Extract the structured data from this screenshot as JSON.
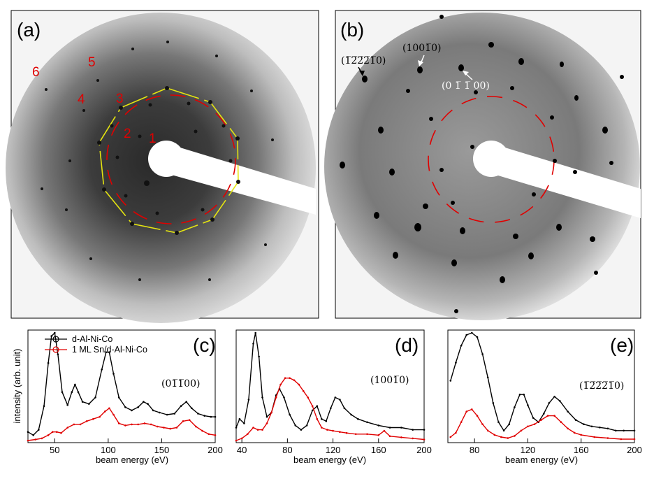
{
  "panels": {
    "a": {
      "label": "(a)",
      "spot_numbers": [
        "1",
        "2",
        "3",
        "4",
        "5",
        "6"
      ]
    },
    "b": {
      "label": "(b)",
      "annotations": {
        "spot1": "(0 1̅ 1̅ 00)",
        "spot2": "(1001̅0)",
        "spot3": "(1̅2̅2̅2̅1̅0)"
      }
    }
  },
  "chart_data": [
    {
      "type": "line",
      "panel_label": "(c)",
      "annotation": "(01̅1̅00)",
      "xlabel": "beam energy (eV)",
      "ylabel": "intensity (arb. unit)",
      "xlim": [
        25,
        200
      ],
      "xticks": [
        50,
        100,
        150,
        200
      ],
      "legend": [
        "d-Al-Ni-Co",
        "1 ML Sn/d-Al-Ni-Co"
      ],
      "series": [
        {
          "name": "d-Al-Ni-Co",
          "color": "#000000",
          "x": [
            25,
            30,
            35,
            40,
            44,
            47,
            50,
            53,
            57,
            62,
            66,
            69,
            72,
            76,
            82,
            88,
            94,
            98,
            101,
            105,
            110,
            116,
            122,
            128,
            133,
            137,
            142,
            148,
            155,
            162,
            168,
            173,
            178,
            184,
            190,
            196,
            200
          ],
          "y": [
            0.08,
            0.05,
            0.1,
            0.32,
            0.72,
            0.97,
            1.0,
            0.8,
            0.45,
            0.33,
            0.45,
            0.52,
            0.45,
            0.36,
            0.34,
            0.4,
            0.66,
            0.82,
            0.82,
            0.62,
            0.4,
            0.31,
            0.28,
            0.31,
            0.36,
            0.34,
            0.28,
            0.26,
            0.24,
            0.25,
            0.32,
            0.36,
            0.3,
            0.25,
            0.23,
            0.22,
            0.22
          ]
        },
        {
          "name": "1 ML Sn/d-Al-Ni-Co",
          "color": "#e00000",
          "x": [
            25,
            32,
            38,
            44,
            48,
            52,
            56,
            62,
            68,
            74,
            80,
            86,
            92,
            97,
            101,
            105,
            110,
            116,
            122,
            128,
            134,
            140,
            146,
            152,
            158,
            164,
            170,
            176,
            182,
            188,
            194,
            200
          ],
          "y": [
            0.0,
            0.01,
            0.02,
            0.05,
            0.08,
            0.08,
            0.07,
            0.12,
            0.15,
            0.15,
            0.18,
            0.2,
            0.22,
            0.27,
            0.3,
            0.24,
            0.16,
            0.14,
            0.15,
            0.15,
            0.16,
            0.15,
            0.13,
            0.12,
            0.11,
            0.12,
            0.18,
            0.19,
            0.13,
            0.09,
            0.06,
            0.05
          ]
        }
      ]
    },
    {
      "type": "line",
      "panel_label": "(d)",
      "annotation": "(1001̅0)",
      "xlabel": "beam energy (eV)",
      "xlim": [
        35,
        200
      ],
      "xticks": [
        40,
        80,
        120,
        160,
        200
      ],
      "series": [
        {
          "name": "d-Al-Ni-Co",
          "color": "#000000",
          "x": [
            35,
            38,
            42,
            46,
            50,
            52,
            55,
            58,
            62,
            66,
            70,
            73,
            77,
            82,
            87,
            92,
            97,
            102,
            106,
            110,
            114,
            118,
            122,
            126,
            130,
            136,
            142,
            150,
            160,
            170,
            180,
            190,
            200
          ],
          "y": [
            0.12,
            0.2,
            0.16,
            0.38,
            0.9,
            1.0,
            0.78,
            0.4,
            0.22,
            0.26,
            0.42,
            0.48,
            0.4,
            0.24,
            0.14,
            0.1,
            0.14,
            0.28,
            0.32,
            0.2,
            0.18,
            0.3,
            0.4,
            0.38,
            0.3,
            0.24,
            0.2,
            0.17,
            0.14,
            0.12,
            0.12,
            0.1,
            0.1
          ]
        },
        {
          "name": "1 ML Sn/d-Al-Ni-Co",
          "color": "#e00000",
          "x": [
            35,
            40,
            45,
            50,
            54,
            58,
            62,
            66,
            70,
            74,
            78,
            82,
            86,
            90,
            94,
            98,
            102,
            106,
            110,
            115,
            120,
            126,
            132,
            140,
            150,
            160,
            165,
            170,
            180,
            190,
            200
          ],
          "y": [
            0.0,
            0.02,
            0.06,
            0.12,
            0.1,
            0.1,
            0.16,
            0.26,
            0.4,
            0.52,
            0.58,
            0.58,
            0.56,
            0.52,
            0.46,
            0.4,
            0.32,
            0.2,
            0.12,
            0.1,
            0.09,
            0.08,
            0.07,
            0.06,
            0.06,
            0.05,
            0.09,
            0.04,
            0.03,
            0.02,
            0.01
          ]
        }
      ]
    },
    {
      "type": "line",
      "panel_label": "(e)",
      "annotation": "(1̅2̅2̅2̅1̅0)",
      "xlabel": "beam energy (eV)",
      "xlim": [
        60,
        200
      ],
      "xticks": [
        80,
        120,
        160,
        200
      ],
      "series": [
        {
          "name": "d-Al-Ni-Co",
          "color": "#000000",
          "x": [
            62,
            66,
            70,
            74,
            78,
            82,
            86,
            90,
            94,
            98,
            102,
            106,
            110,
            114,
            117,
            120,
            124,
            128,
            132,
            136,
            140,
            144,
            150,
            156,
            162,
            168,
            174,
            180,
            186,
            192,
            200
          ],
          "y": [
            0.55,
            0.72,
            0.88,
            0.98,
            1.0,
            0.96,
            0.8,
            0.58,
            0.34,
            0.16,
            0.08,
            0.14,
            0.3,
            0.42,
            0.42,
            0.32,
            0.2,
            0.16,
            0.24,
            0.34,
            0.4,
            0.36,
            0.26,
            0.18,
            0.14,
            0.12,
            0.11,
            0.1,
            0.08,
            0.08,
            0.08
          ]
        },
        {
          "name": "1 ML Sn/d-Al-Ni-Co",
          "color": "#e00000",
          "x": [
            62,
            66,
            70,
            74,
            78,
            82,
            86,
            90,
            95,
            100,
            105,
            110,
            115,
            120,
            125,
            130,
            135,
            140,
            145,
            150,
            155,
            160,
            170,
            180,
            190,
            200
          ],
          "y": [
            0.02,
            0.06,
            0.16,
            0.26,
            0.28,
            0.22,
            0.14,
            0.08,
            0.04,
            0.02,
            0.01,
            0.03,
            0.08,
            0.12,
            0.14,
            0.18,
            0.22,
            0.22,
            0.16,
            0.1,
            0.06,
            0.04,
            0.02,
            0.01,
            0.0,
            0.0
          ]
        }
      ]
    }
  ]
}
